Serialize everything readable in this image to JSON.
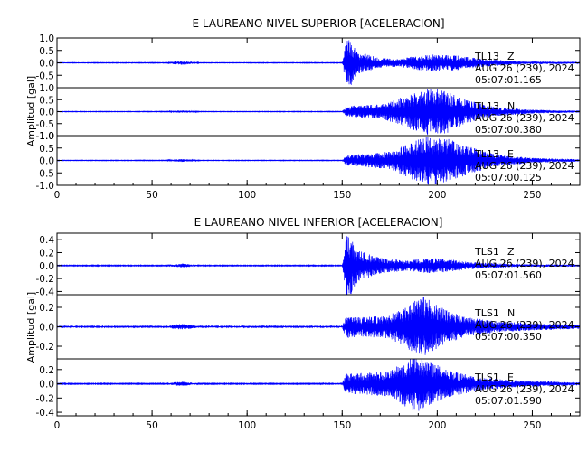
{
  "chart_data": [
    {
      "type": "line",
      "title": "E LAUREANO NIVEL SUPERIOR [ACELERACION]",
      "ylabel": "Amplitud [gal]",
      "xlim": [
        0,
        275
      ],
      "x_ticks": [
        "0",
        "50",
        "100",
        "150",
        "200",
        "250"
      ],
      "color": "#0000ff",
      "traces": [
        {
          "station": "TL13",
          "component": "Z",
          "date": "AUG 26 (239), 2024",
          "time": "05:07:01.165",
          "ylim": [
            -1.0,
            1.0
          ],
          "y_ticks": [
            "1.0",
            "0.5",
            "0.0",
            "-0.5"
          ],
          "noise_amplitude": 0.01,
          "envelope": [
            [
              0,
              0.01
            ],
            [
              58,
              0.012
            ],
            [
              62,
              0.06
            ],
            [
              66,
              0.08
            ],
            [
              70,
              0.05
            ],
            [
              75,
              0.01
            ],
            [
              150,
              0.012
            ],
            [
              152,
              0.85
            ],
            [
              154,
              1.0
            ],
            [
              158,
              0.45
            ],
            [
              170,
              0.2
            ],
            [
              180,
              0.15
            ],
            [
              190,
              0.3
            ],
            [
              200,
              0.35
            ],
            [
              210,
              0.3
            ],
            [
              225,
              0.15
            ],
            [
              245,
              0.06
            ],
            [
              275,
              0.04
            ]
          ]
        },
        {
          "station": "TL13",
          "component": "N",
          "date": "AUG 26 (239), 2024",
          "time": "05:07:00.380",
          "ylim": [
            -1.0,
            1.0
          ],
          "y_ticks": [
            "1.0",
            "0.5",
            "0.0",
            "-0.5",
            "-1.0"
          ],
          "noise_amplitude": 0.01,
          "envelope": [
            [
              0,
              0.01
            ],
            [
              58,
              0.012
            ],
            [
              62,
              0.04
            ],
            [
              66,
              0.05
            ],
            [
              70,
              0.04
            ],
            [
              75,
              0.01
            ],
            [
              150,
              0.012
            ],
            [
              152,
              0.2
            ],
            [
              156,
              0.25
            ],
            [
              170,
              0.3
            ],
            [
              185,
              0.7
            ],
            [
              195,
              1.0
            ],
            [
              205,
              0.9
            ],
            [
              215,
              0.5
            ],
            [
              230,
              0.2
            ],
            [
              250,
              0.08
            ],
            [
              275,
              0.04
            ]
          ]
        },
        {
          "station": "TL13",
          "component": "E",
          "date": "AUG 26 (239), 2024",
          "time": "05:07:00.125",
          "ylim": [
            -1.0,
            1.0
          ],
          "y_ticks": [
            "1.0",
            "0.5",
            "0.0",
            "-0.5",
            "-1.0"
          ],
          "noise_amplitude": 0.01,
          "envelope": [
            [
              0,
              0.01
            ],
            [
              58,
              0.012
            ],
            [
              62,
              0.04
            ],
            [
              66,
              0.06
            ],
            [
              70,
              0.04
            ],
            [
              75,
              0.01
            ],
            [
              150,
              0.012
            ],
            [
              152,
              0.2
            ],
            [
              158,
              0.25
            ],
            [
              175,
              0.35
            ],
            [
              188,
              0.8
            ],
            [
              195,
              1.0
            ],
            [
              205,
              0.9
            ],
            [
              215,
              0.6
            ],
            [
              230,
              0.25
            ],
            [
              250,
              0.1
            ],
            [
              275,
              0.05
            ]
          ]
        }
      ]
    },
    {
      "type": "line",
      "title": "E LAUREANO NIVEL INFERIOR [ACELERACION]",
      "ylabel": "Amplitud [gal]",
      "xlim": [
        0,
        275
      ],
      "x_ticks": [
        "0",
        "50",
        "100",
        "150",
        "200",
        "250"
      ],
      "color": "#0000ff",
      "traces": [
        {
          "station": "TLS1",
          "component": "Z",
          "date": "AUG 26 (239), 2024",
          "time": "05:07:01.560",
          "ylim": [
            -0.45,
            0.5
          ],
          "y_ticks": [
            "0.4",
            "0.2",
            "0.0",
            "-0.2",
            "-0.4"
          ],
          "noise_amplitude": 0.006,
          "envelope": [
            [
              0,
              0.005
            ],
            [
              58,
              0.006
            ],
            [
              62,
              0.02
            ],
            [
              66,
              0.03
            ],
            [
              70,
              0.02
            ],
            [
              75,
              0.006
            ],
            [
              150,
              0.006
            ],
            [
              152,
              0.45
            ],
            [
              154,
              0.48
            ],
            [
              158,
              0.25
            ],
            [
              170,
              0.12
            ],
            [
              185,
              0.08
            ],
            [
              195,
              0.12
            ],
            [
              205,
              0.1
            ],
            [
              220,
              0.05
            ],
            [
              245,
              0.02
            ],
            [
              275,
              0.015
            ]
          ]
        },
        {
          "station": "TLS1",
          "component": "N",
          "date": "AUG 26 (239), 2024",
          "time": "05:07:00.350",
          "ylim": [
            -0.33,
            0.33
          ],
          "y_ticks": [
            "0.2",
            "0.0",
            "-0.2"
          ],
          "noise_amplitude": 0.006,
          "envelope": [
            [
              0,
              0.005
            ],
            [
              58,
              0.006
            ],
            [
              62,
              0.025
            ],
            [
              66,
              0.03
            ],
            [
              70,
              0.02
            ],
            [
              75,
              0.006
            ],
            [
              150,
              0.006
            ],
            [
              152,
              0.12
            ],
            [
              160,
              0.1
            ],
            [
              175,
              0.12
            ],
            [
              188,
              0.28
            ],
            [
              194,
              0.32
            ],
            [
              202,
              0.2
            ],
            [
              215,
              0.1
            ],
            [
              235,
              0.05
            ],
            [
              275,
              0.02
            ]
          ]
        },
        {
          "station": "TLS1",
          "component": "E",
          "date": "AUG 26 (239), 2024",
          "time": "05:07:01.590",
          "ylim": [
            -0.45,
            0.35
          ],
          "y_ticks": [
            "0.2",
            "0.0",
            "-0.2",
            "-0.4"
          ],
          "noise_amplitude": 0.006,
          "envelope": [
            [
              0,
              0.005
            ],
            [
              58,
              0.006
            ],
            [
              62,
              0.025
            ],
            [
              66,
              0.03
            ],
            [
              70,
              0.02
            ],
            [
              75,
              0.006
            ],
            [
              150,
              0.006
            ],
            [
              152,
              0.15
            ],
            [
              160,
              0.15
            ],
            [
              175,
              0.18
            ],
            [
              188,
              0.4
            ],
            [
              194,
              0.35
            ],
            [
              205,
              0.2
            ],
            [
              220,
              0.1
            ],
            [
              240,
              0.05
            ],
            [
              275,
              0.02
            ]
          ]
        }
      ]
    }
  ]
}
